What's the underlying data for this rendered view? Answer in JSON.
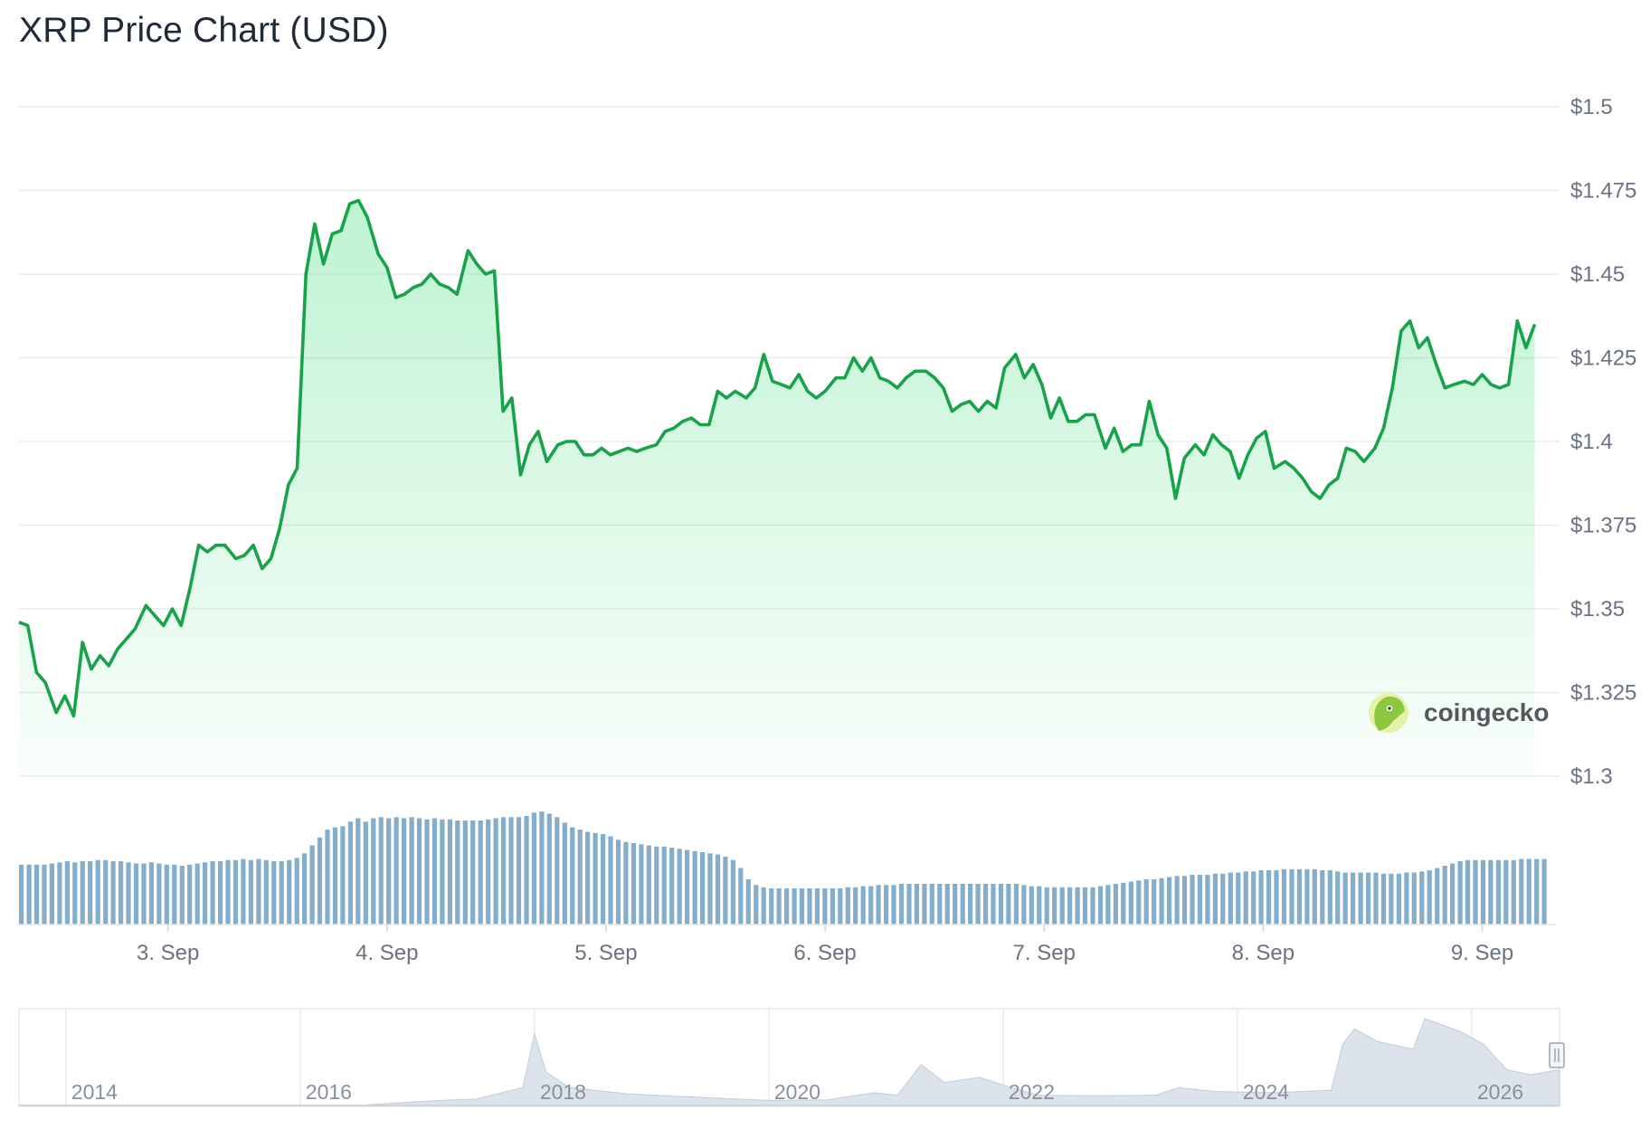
{
  "title": "XRP Price Chart (USD)",
  "colors": {
    "price_line": "#16a34a",
    "area_fill": "#4ade80",
    "volume_bar": "#6f9fc2",
    "grid": "#ececec",
    "navigator_fill": "#d6dce3"
  },
  "brand": {
    "name": "coingecko",
    "icon": "gecko-logo-icon"
  },
  "chart_data": {
    "type": "line",
    "title": "XRP Price Chart (USD)",
    "y_ticks": [
      "$1.3",
      "$1.325",
      "$1.35",
      "$1.375",
      "$1.4",
      "$1.425",
      "$1.45",
      "$1.475",
      "$1.5"
    ],
    "y_tick_values": [
      1.3,
      1.325,
      1.35,
      1.375,
      1.4,
      1.425,
      1.45,
      1.475,
      1.5
    ],
    "ylim": [
      1.3,
      1.5
    ],
    "x_ticks": [
      "3. Sep",
      "4. Sep",
      "5. Sep",
      "6. Sep",
      "7. Sep",
      "8. Sep",
      "9. Sep"
    ],
    "x_tick_values": [
      3,
      4,
      5,
      6,
      7,
      8,
      9
    ],
    "xlim": [
      2.32,
      9.32
    ],
    "grid": true,
    "price_series": [
      [
        2.32,
        1.346
      ],
      [
        2.36,
        1.345
      ],
      [
        2.4,
        1.331
      ],
      [
        2.44,
        1.328
      ],
      [
        2.49,
        1.319
      ],
      [
        2.53,
        1.324
      ],
      [
        2.57,
        1.318
      ],
      [
        2.61,
        1.34
      ],
      [
        2.65,
        1.332
      ],
      [
        2.69,
        1.336
      ],
      [
        2.73,
        1.333
      ],
      [
        2.77,
        1.338
      ],
      [
        2.81,
        1.341
      ],
      [
        2.85,
        1.344
      ],
      [
        2.9,
        1.351
      ],
      [
        2.94,
        1.348
      ],
      [
        2.98,
        1.345
      ],
      [
        3.02,
        1.35
      ],
      [
        3.06,
        1.345
      ],
      [
        3.1,
        1.356
      ],
      [
        3.14,
        1.369
      ],
      [
        3.18,
        1.367
      ],
      [
        3.22,
        1.369
      ],
      [
        3.26,
        1.369
      ],
      [
        3.31,
        1.365
      ],
      [
        3.35,
        1.366
      ],
      [
        3.39,
        1.369
      ],
      [
        3.43,
        1.362
      ],
      [
        3.47,
        1.365
      ],
      [
        3.51,
        1.374
      ],
      [
        3.55,
        1.387
      ],
      [
        3.59,
        1.392
      ],
      [
        3.63,
        1.45
      ],
      [
        3.67,
        1.465
      ],
      [
        3.71,
        1.453
      ],
      [
        3.75,
        1.462
      ],
      [
        3.79,
        1.463
      ],
      [
        3.83,
        1.471
      ],
      [
        3.87,
        1.472
      ],
      [
        3.91,
        1.467
      ],
      [
        3.96,
        1.456
      ],
      [
        4.0,
        1.452
      ],
      [
        4.04,
        1.443
      ],
      [
        4.08,
        1.444
      ],
      [
        4.12,
        1.446
      ],
      [
        4.16,
        1.447
      ],
      [
        4.2,
        1.45
      ],
      [
        4.24,
        1.447
      ],
      [
        4.28,
        1.446
      ],
      [
        4.32,
        1.444
      ],
      [
        4.37,
        1.457
      ],
      [
        4.41,
        1.453
      ],
      [
        4.45,
        1.45
      ],
      [
        4.49,
        1.451
      ],
      [
        4.53,
        1.409
      ],
      [
        4.57,
        1.413
      ],
      [
        4.61,
        1.39
      ],
      [
        4.65,
        1.399
      ],
      [
        4.69,
        1.403
      ],
      [
        4.73,
        1.394
      ],
      [
        4.78,
        1.399
      ],
      [
        4.82,
        1.4
      ],
      [
        4.86,
        1.4
      ],
      [
        4.9,
        1.396
      ],
      [
        4.94,
        1.396
      ],
      [
        4.98,
        1.398
      ],
      [
        5.02,
        1.396
      ],
      [
        5.06,
        1.397
      ],
      [
        5.1,
        1.398
      ],
      [
        5.14,
        1.397
      ],
      [
        5.18,
        1.398
      ],
      [
        5.23,
        1.399
      ],
      [
        5.27,
        1.403
      ],
      [
        5.31,
        1.404
      ],
      [
        5.35,
        1.406
      ],
      [
        5.39,
        1.407
      ],
      [
        5.43,
        1.405
      ],
      [
        5.47,
        1.405
      ],
      [
        5.51,
        1.415
      ],
      [
        5.55,
        1.413
      ],
      [
        5.59,
        1.415
      ],
      [
        5.64,
        1.413
      ],
      [
        5.68,
        1.416
      ],
      [
        5.72,
        1.426
      ],
      [
        5.76,
        1.418
      ],
      [
        5.8,
        1.417
      ],
      [
        5.84,
        1.416
      ],
      [
        5.88,
        1.42
      ],
      [
        5.92,
        1.415
      ],
      [
        5.96,
        1.413
      ],
      [
        6.0,
        1.415
      ],
      [
        6.05,
        1.419
      ],
      [
        6.09,
        1.419
      ],
      [
        6.13,
        1.425
      ],
      [
        6.17,
        1.421
      ],
      [
        6.21,
        1.425
      ],
      [
        6.25,
        1.419
      ],
      [
        6.29,
        1.418
      ],
      [
        6.33,
        1.416
      ],
      [
        6.37,
        1.419
      ],
      [
        6.41,
        1.421
      ],
      [
        6.46,
        1.421
      ],
      [
        6.5,
        1.419
      ],
      [
        6.54,
        1.416
      ],
      [
        6.58,
        1.409
      ],
      [
        6.62,
        1.411
      ],
      [
        6.66,
        1.412
      ],
      [
        6.7,
        1.409
      ],
      [
        6.74,
        1.412
      ],
      [
        6.78,
        1.41
      ],
      [
        6.82,
        1.422
      ],
      [
        6.87,
        1.426
      ],
      [
        6.91,
        1.419
      ],
      [
        6.95,
        1.423
      ],
      [
        6.99,
        1.417
      ],
      [
        7.03,
        1.407
      ],
      [
        7.07,
        1.413
      ],
      [
        7.11,
        1.406
      ],
      [
        7.15,
        1.406
      ],
      [
        7.19,
        1.408
      ],
      [
        7.23,
        1.408
      ],
      [
        7.28,
        1.398
      ],
      [
        7.32,
        1.404
      ],
      [
        7.36,
        1.397
      ],
      [
        7.4,
        1.399
      ],
      [
        7.44,
        1.399
      ],
      [
        7.48,
        1.412
      ],
      [
        7.52,
        1.402
      ],
      [
        7.56,
        1.398
      ],
      [
        7.6,
        1.383
      ],
      [
        7.64,
        1.395
      ],
      [
        7.69,
        1.399
      ],
      [
        7.73,
        1.396
      ],
      [
        7.77,
        1.402
      ],
      [
        7.81,
        1.399
      ],
      [
        7.85,
        1.397
      ],
      [
        7.89,
        1.389
      ],
      [
        7.93,
        1.396
      ],
      [
        7.97,
        1.401
      ],
      [
        8.01,
        1.403
      ],
      [
        8.05,
        1.392
      ],
      [
        8.1,
        1.394
      ],
      [
        8.14,
        1.392
      ],
      [
        8.18,
        1.389
      ],
      [
        8.22,
        1.385
      ],
      [
        8.26,
        1.383
      ],
      [
        8.3,
        1.387
      ],
      [
        8.34,
        1.389
      ],
      [
        8.38,
        1.398
      ],
      [
        8.42,
        1.397
      ],
      [
        8.46,
        1.394
      ],
      [
        8.51,
        1.398
      ],
      [
        8.55,
        1.404
      ],
      [
        8.59,
        1.416
      ],
      [
        8.63,
        1.433
      ],
      [
        8.67,
        1.436
      ],
      [
        8.71,
        1.428
      ],
      [
        8.75,
        1.431
      ],
      [
        8.79,
        1.423
      ],
      [
        8.83,
        1.416
      ],
      [
        8.87,
        1.417
      ],
      [
        8.92,
        1.418
      ],
      [
        8.96,
        1.417
      ],
      [
        9.0,
        1.42
      ],
      [
        9.04,
        1.417
      ],
      [
        9.08,
        1.416
      ],
      [
        9.12,
        1.417
      ],
      [
        9.16,
        1.436
      ],
      [
        9.2,
        1.428
      ],
      [
        9.24,
        1.435
      ]
    ],
    "volume_levels": [
      0.53,
      0.53,
      0.53,
      0.53,
      0.54,
      0.55,
      0.56,
      0.55,
      0.56,
      0.56,
      0.57,
      0.57,
      0.56,
      0.56,
      0.55,
      0.54,
      0.54,
      0.55,
      0.54,
      0.53,
      0.53,
      0.52,
      0.53,
      0.54,
      0.55,
      0.56,
      0.56,
      0.57,
      0.57,
      0.58,
      0.57,
      0.58,
      0.57,
      0.56,
      0.56,
      0.57,
      0.59,
      0.63,
      0.7,
      0.77,
      0.84,
      0.86,
      0.87,
      0.91,
      0.94,
      0.91,
      0.94,
      0.95,
      0.94,
      0.95,
      0.94,
      0.95,
      0.94,
      0.93,
      0.94,
      0.93,
      0.93,
      0.92,
      0.92,
      0.92,
      0.92,
      0.93,
      0.94,
      0.95,
      0.95,
      0.95,
      0.96,
      0.99,
      1.0,
      0.98,
      0.95,
      0.9,
      0.86,
      0.84,
      0.82,
      0.81,
      0.8,
      0.78,
      0.75,
      0.73,
      0.72,
      0.71,
      0.7,
      0.69,
      0.69,
      0.68,
      0.67,
      0.66,
      0.65,
      0.64,
      0.63,
      0.62,
      0.6,
      0.57,
      0.5,
      0.4,
      0.35,
      0.33,
      0.32,
      0.32,
      0.32,
      0.32,
      0.32,
      0.32,
      0.32,
      0.32,
      0.32,
      0.32,
      0.33,
      0.33,
      0.34,
      0.34,
      0.35,
      0.35,
      0.35,
      0.36,
      0.36,
      0.36,
      0.36,
      0.36,
      0.36,
      0.36,
      0.36,
      0.36,
      0.36,
      0.36,
      0.36,
      0.36,
      0.36,
      0.36,
      0.36,
      0.35,
      0.34,
      0.34,
      0.33,
      0.33,
      0.33,
      0.33,
      0.33,
      0.33,
      0.33,
      0.34,
      0.35,
      0.36,
      0.37,
      0.38,
      0.39,
      0.4,
      0.4,
      0.41,
      0.42,
      0.43,
      0.43,
      0.44,
      0.44,
      0.44,
      0.45,
      0.45,
      0.46,
      0.46,
      0.47,
      0.47,
      0.48,
      0.48,
      0.48,
      0.49,
      0.49,
      0.49,
      0.49,
      0.49,
      0.48,
      0.48,
      0.47,
      0.46,
      0.46,
      0.46,
      0.46,
      0.46,
      0.45,
      0.45,
      0.45,
      0.46,
      0.46,
      0.47,
      0.48,
      0.5,
      0.52,
      0.54,
      0.56,
      0.57,
      0.57,
      0.57,
      0.57,
      0.57,
      0.57,
      0.57,
      0.58,
      0.58,
      0.58,
      0.58
    ]
  },
  "navigator": {
    "year_labels": [
      "2014",
      "2016",
      "2018",
      "2020",
      "2022",
      "2024",
      "2026"
    ],
    "year_values": [
      2014,
      2016,
      2018,
      2020,
      2022,
      2024,
      2026
    ],
    "range": [
      2013.6,
      2026.75
    ],
    "history": [
      [
        2013.6,
        0.005
      ],
      [
        2014.5,
        0.005
      ],
      [
        2015.5,
        0.006
      ],
      [
        2016.5,
        0.008
      ],
      [
        2017.2,
        0.2
      ],
      [
        2017.5,
        0.25
      ],
      [
        2017.9,
        0.7
      ],
      [
        2018.0,
        2.8
      ],
      [
        2018.1,
        1.3
      ],
      [
        2018.3,
        0.7
      ],
      [
        2018.8,
        0.45
      ],
      [
        2019.5,
        0.3
      ],
      [
        2020.0,
        0.2
      ],
      [
        2020.5,
        0.22
      ],
      [
        2020.9,
        0.5
      ],
      [
        2021.1,
        0.4
      ],
      [
        2021.3,
        1.6
      ],
      [
        2021.5,
        0.9
      ],
      [
        2021.8,
        1.1
      ],
      [
        2022.0,
        0.8
      ],
      [
        2022.3,
        0.4
      ],
      [
        2022.8,
        0.38
      ],
      [
        2023.3,
        0.4
      ],
      [
        2023.5,
        0.7
      ],
      [
        2023.8,
        0.55
      ],
      [
        2024.3,
        0.5
      ],
      [
        2024.8,
        0.6
      ],
      [
        2024.9,
        2.4
      ],
      [
        2025.0,
        3.0
      ],
      [
        2025.2,
        2.5
      ],
      [
        2025.5,
        2.2
      ],
      [
        2025.6,
        3.4
      ],
      [
        2025.9,
        2.9
      ],
      [
        2026.1,
        2.4
      ],
      [
        2026.3,
        1.4
      ],
      [
        2026.5,
        1.2
      ],
      [
        2026.75,
        1.4
      ]
    ]
  }
}
